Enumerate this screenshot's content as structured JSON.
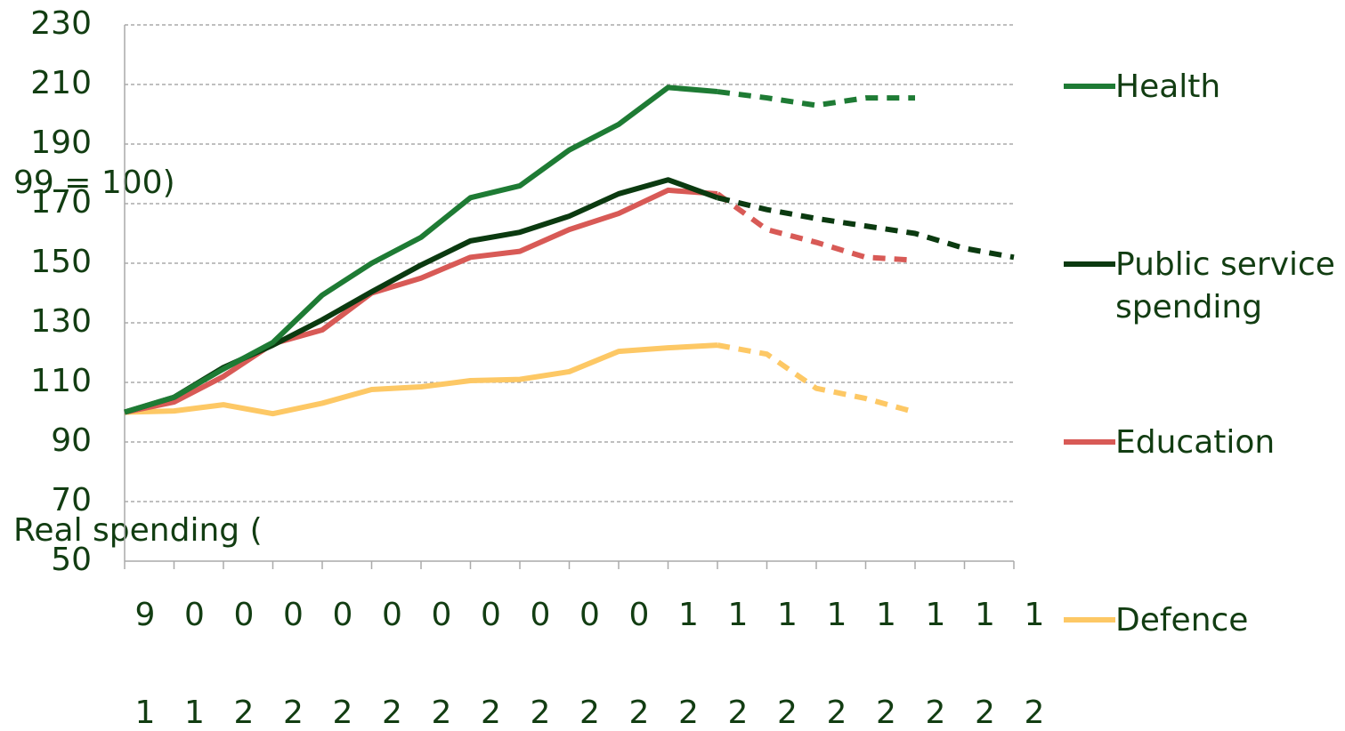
{
  "chart_data": {
    "type": "line",
    "y_axis_label": [
      "Real spending (",
      "99 = 100)"
    ],
    "categories": [
      "9",
      "0",
      "0",
      "0",
      "0",
      "0",
      "0",
      "0",
      "0",
      "0",
      "0",
      "1",
      "1",
      "1",
      "1",
      "1",
      "1",
      "1",
      "1"
    ],
    "categories_row2": [
      "1",
      "1",
      "2",
      "2",
      "2",
      "2",
      "2",
      "2",
      "2",
      "2",
      "2",
      "2",
      "2",
      "2",
      "2",
      "2",
      "2",
      "2",
      "2"
    ],
    "ylim": [
      50,
      230
    ],
    "yticks": [
      50,
      70,
      90,
      110,
      130,
      150,
      170,
      190,
      210,
      230
    ],
    "grid": true,
    "dashed_from_index": 12,
    "series": [
      {
        "name": "Health",
        "color": "#1e7b34",
        "values": [
          100,
          105,
          114.5,
          123.4,
          139.3,
          150,
          158.7,
          172,
          176,
          188,
          196.6,
          209,
          207.6,
          205.5,
          203,
          205.5,
          205.5,
          null,
          null
        ]
      },
      {
        "name": "Public service spending",
        "color": "#0b3a10",
        "values": [
          100,
          105,
          115,
          122.5,
          131,
          140.4,
          149.4,
          157.5,
          160.4,
          165.8,
          173.3,
          178,
          172,
          168,
          165,
          162.5,
          160,
          155,
          152
        ]
      },
      {
        "name": "Education",
        "color": "#d85a56",
        "values": [
          100,
          103.4,
          112,
          123,
          127.6,
          140,
          145,
          152,
          154,
          161.3,
          166.7,
          174.5,
          173.3,
          161.3,
          157,
          152,
          151,
          null,
          null
        ]
      },
      {
        "name": "Defence",
        "color": "#fdc865",
        "values": [
          100,
          100.4,
          102.5,
          99.5,
          103,
          107.6,
          108.5,
          110.6,
          111,
          113.6,
          120.4,
          121.6,
          122.5,
          119.5,
          108,
          104.6,
          100,
          null,
          null
        ]
      }
    ]
  }
}
